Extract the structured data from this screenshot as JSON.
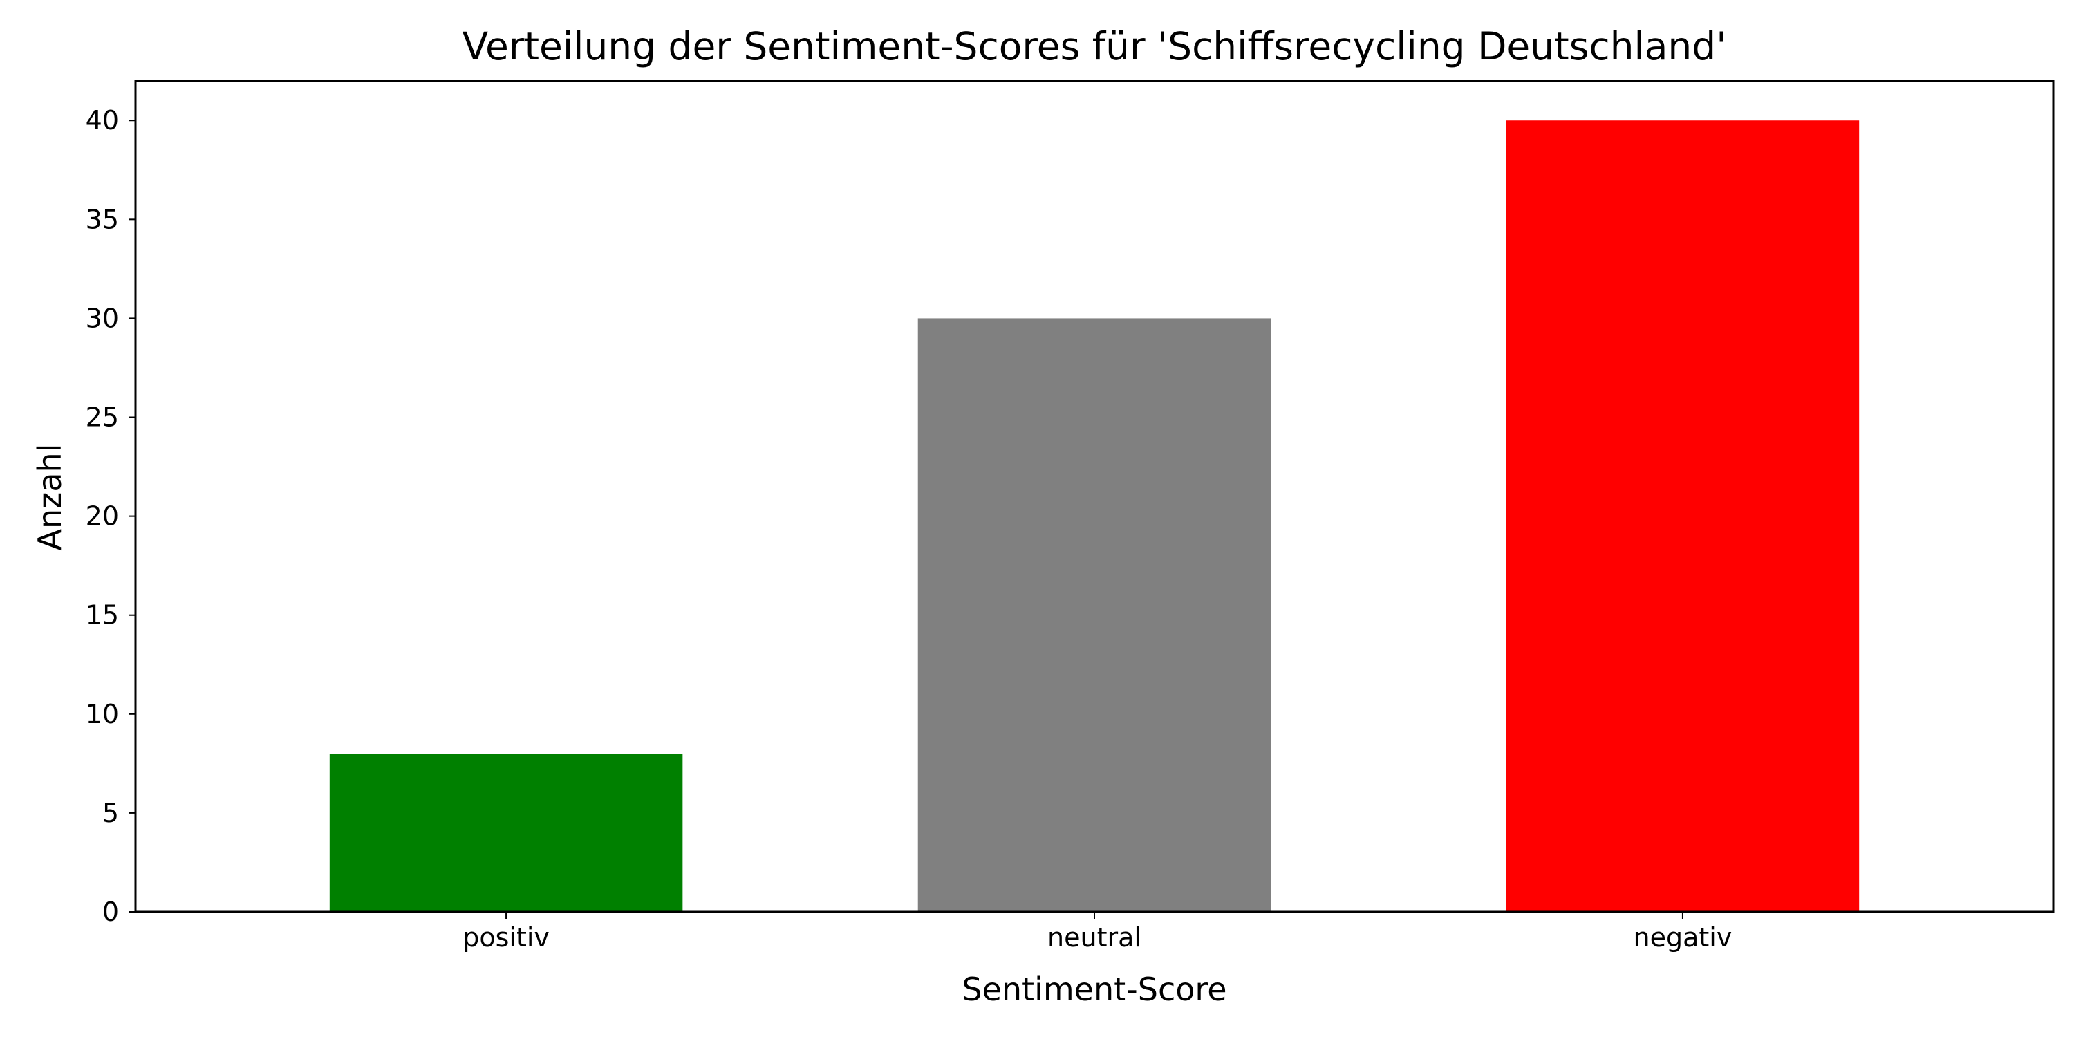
{
  "chart_data": {
    "type": "bar",
    "title": "Verteilung der Sentiment-Scores für 'Schiffsrecycling Deutschland'",
    "xlabel": "Sentiment-Score",
    "ylabel": "Anzahl",
    "categories": [
      "positiv",
      "neutral",
      "negativ"
    ],
    "values": [
      8,
      30,
      40
    ],
    "colors": [
      "#008000",
      "#808080",
      "#ff0000"
    ],
    "ylim": [
      0,
      42
    ],
    "yticks": [
      0,
      5,
      10,
      15,
      20,
      25,
      30,
      35,
      40
    ],
    "grid": false,
    "legend": "none",
    "reference_line": {
      "y": 0,
      "style": "dashed",
      "color": "#888888"
    }
  }
}
